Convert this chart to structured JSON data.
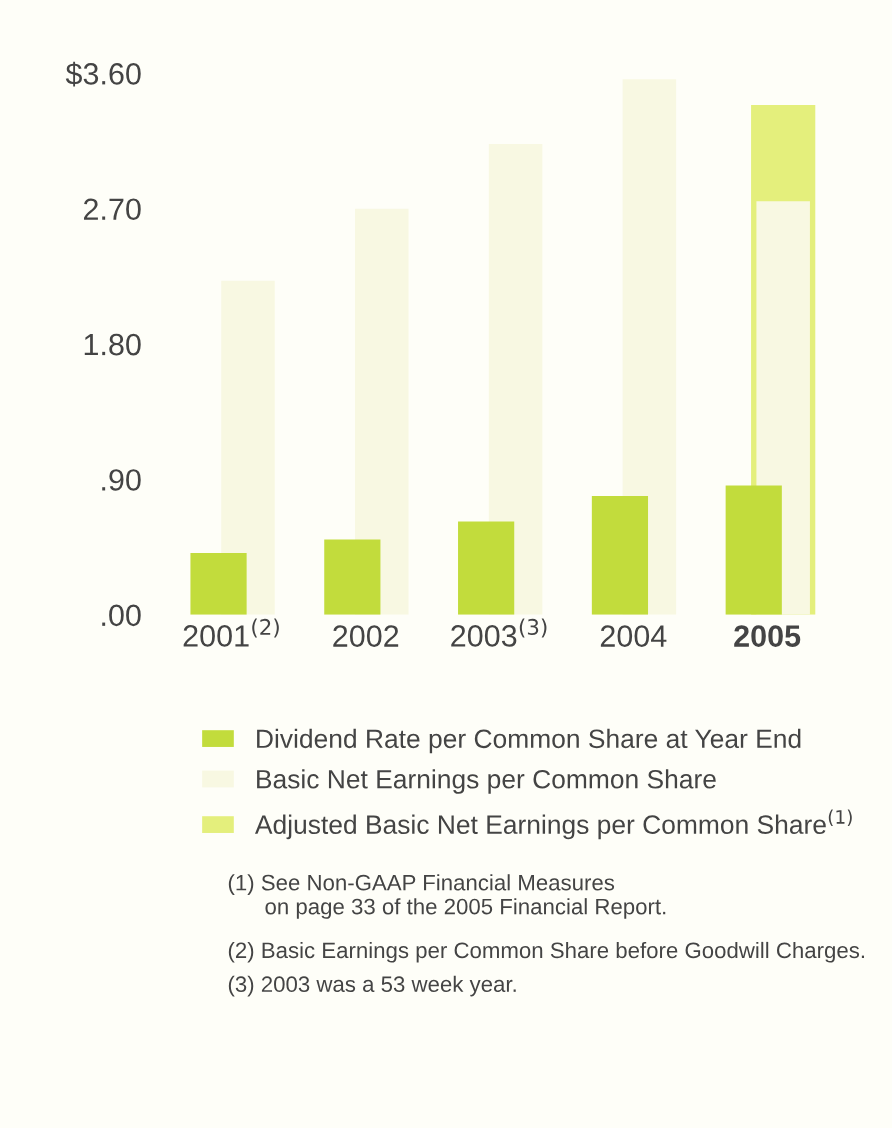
{
  "chart_data": {
    "type": "bar",
    "categories": [
      "2001$^{(2)}$",
      "2002",
      "2003$^{(3)}$",
      "2004",
      "2005"
    ],
    "series": [
      {
        "name": "Adjusted Basic Net Earnings per Common Share$^{(1)}$",
        "color": "#e4ef7c",
        "values": [
          null,
          null,
          null,
          null,
          3.39
        ]
      },
      {
        "name": "Basic Net Earnings per Common Share",
        "color": "#f8f8e2",
        "values": [
          2.22,
          2.7,
          3.13,
          3.56,
          2.75
        ]
      },
      {
        "name": "Dividend Rate per Common Share at Year End",
        "color": "#c2dc3c",
        "values": [
          0.41,
          0.5,
          0.62,
          0.79,
          0.86
        ]
      }
    ],
    "ylim": [
      0,
      3.6
    ],
    "yticks": [
      {
        "value": 0,
        "label": ".00"
      },
      {
        "value": 0.9,
        "label": ".90"
      },
      {
        "value": 1.8,
        "label": "1.80"
      },
      {
        "value": 2.7,
        "label": "2.70"
      },
      {
        "value": 3.6,
        "label": "$3.60"
      }
    ],
    "grid": false,
    "legend": "bottom",
    "annotations": [
      "(1) See Non-GAAP Financial Measures\n      on page 33 of the 2005 Financial Report.",
      "(2) Basic Earnings per Common Share before Goodwill Charges.",
      "(3) 2003 was a 53 week year."
    ]
  }
}
